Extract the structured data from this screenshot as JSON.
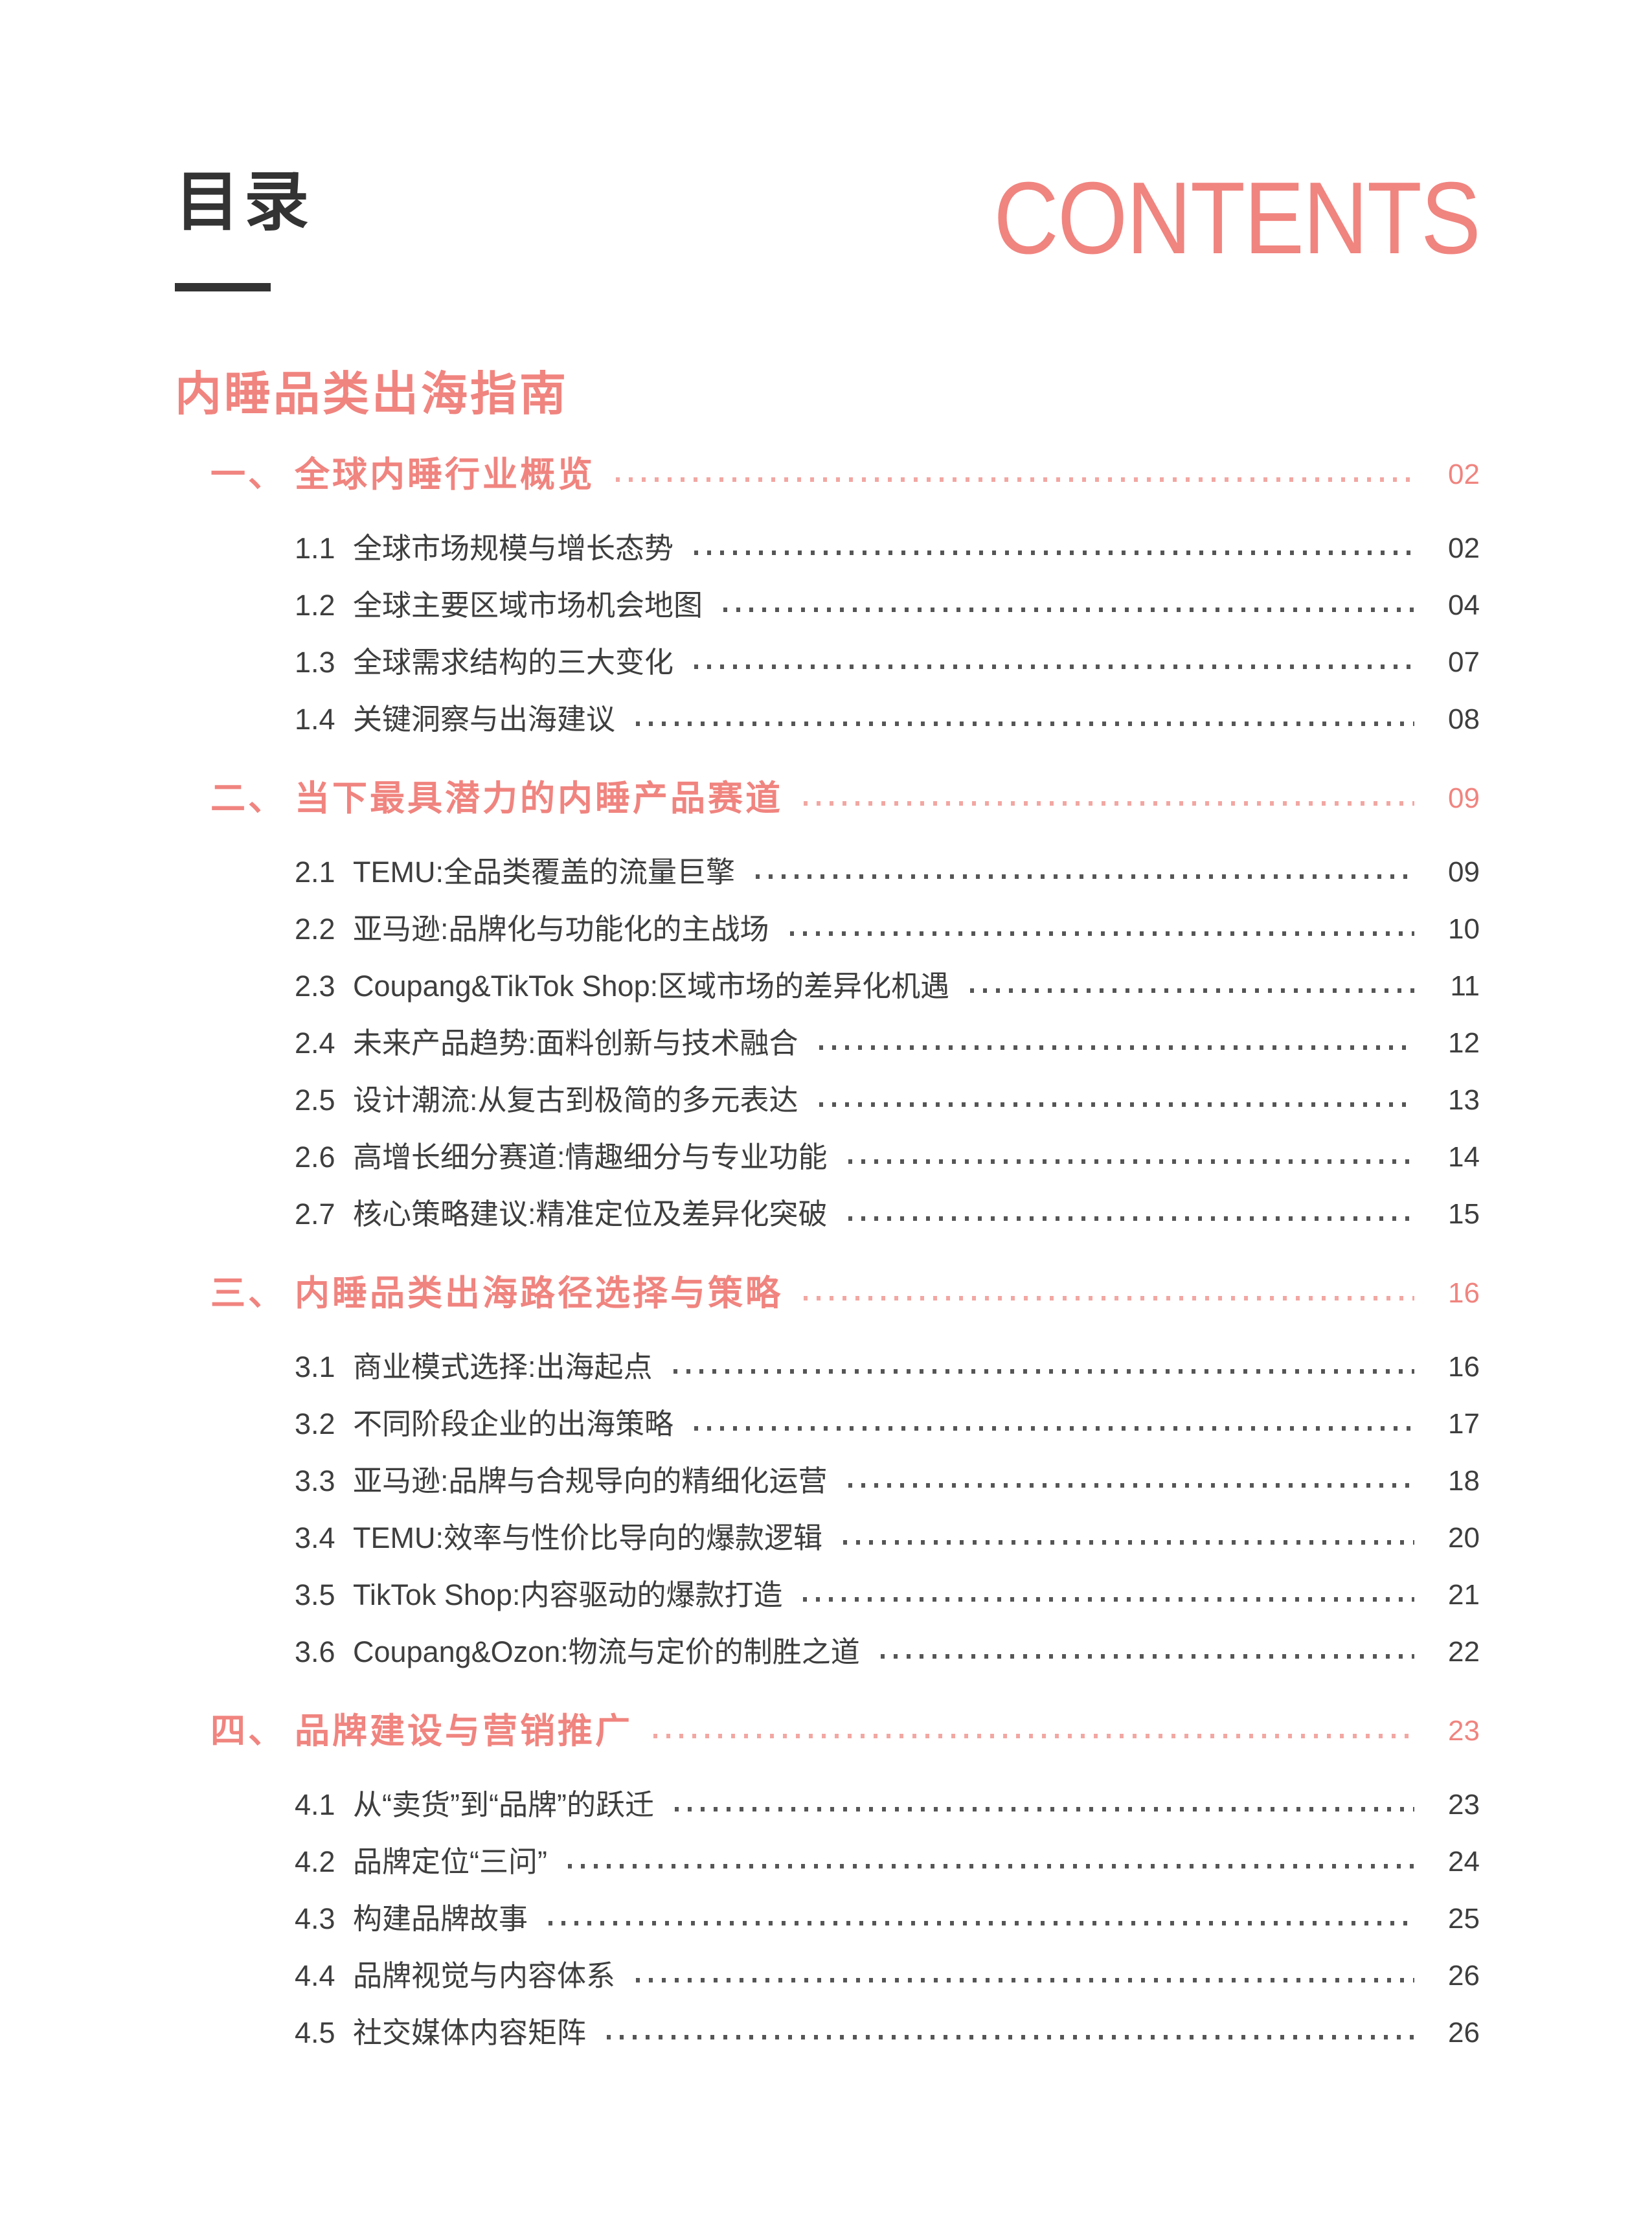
{
  "colors": {
    "accent": "#F0847F",
    "accent_dots": "#F2A7A2",
    "text_dark": "#333333",
    "text_body": "#3E3E3E",
    "item_dots": "#565656"
  },
  "header": {
    "title_cn": "目录",
    "title_en": "CONTENTS",
    "subtitle": "内睡品类出海指南"
  },
  "toc": {
    "sections": [
      {
        "marker": "一、",
        "title": "全球内睡行业概览",
        "page": "02",
        "items": [
          {
            "no": "1.1",
            "title": "全球市场规模与增长态势",
            "page": "02"
          },
          {
            "no": "1.2",
            "title": "全球主要区域市场机会地图",
            "page": "04"
          },
          {
            "no": "1.3",
            "title": "全球需求结构的三大变化",
            "page": "07"
          },
          {
            "no": "1.4",
            "title": "关键洞察与出海建议",
            "page": "08"
          }
        ]
      },
      {
        "marker": "二、",
        "title": "当下最具潜力的内睡产品赛道",
        "page": "09",
        "items": [
          {
            "no": "2.1",
            "title": "TEMU:全品类覆盖的流量巨擎",
            "page": "09"
          },
          {
            "no": "2.2",
            "title": "亚马逊:品牌化与功能化的主战场",
            "page": "10"
          },
          {
            "no": "2.3",
            "title": "Coupang&TikTok Shop:区域市场的差异化机遇",
            "page": "11"
          },
          {
            "no": "2.4",
            "title": "未来产品趋势:面料创新与技术融合",
            "page": "12"
          },
          {
            "no": "2.5",
            "title": "设计潮流:从复古到极简的多元表达",
            "page": "13"
          },
          {
            "no": "2.6",
            "title": "高增长细分赛道:情趣细分与专业功能",
            "page": "14"
          },
          {
            "no": "2.7",
            "title": "核心策略建议:精准定位及差异化突破",
            "page": "15"
          }
        ]
      },
      {
        "marker": "三、",
        "title": "内睡品类出海路径选择与策略",
        "page": "16",
        "items": [
          {
            "no": "3.1",
            "title": "商业模式选择:出海起点",
            "page": "16"
          },
          {
            "no": "3.2",
            "title": "不同阶段企业的出海策略",
            "page": "17"
          },
          {
            "no": "3.3",
            "title": "亚马逊:品牌与合规导向的精细化运营",
            "page": "18"
          },
          {
            "no": "3.4",
            "title": "TEMU:效率与性价比导向的爆款逻辑",
            "page": "20"
          },
          {
            "no": "3.5",
            "title": "TikTok Shop:内容驱动的爆款打造",
            "page": "21"
          },
          {
            "no": "3.6",
            "title": "Coupang&Ozon:物流与定价的制胜之道",
            "page": "22"
          }
        ]
      },
      {
        "marker": "四、",
        "title": "品牌建设与营销推广",
        "page": "23",
        "items": [
          {
            "no": "4.1",
            "title": "从“卖货”到“品牌”的跃迁",
            "page": "23"
          },
          {
            "no": "4.2",
            "title": "品牌定位“三问”",
            "page": "24"
          },
          {
            "no": "4.3",
            "title": "构建品牌故事",
            "page": "25"
          },
          {
            "no": "4.4",
            "title": "品牌视觉与内容体系",
            "page": "26"
          },
          {
            "no": "4.5",
            "title": "社交媒体内容矩阵",
            "page": "26"
          }
        ]
      }
    ]
  }
}
